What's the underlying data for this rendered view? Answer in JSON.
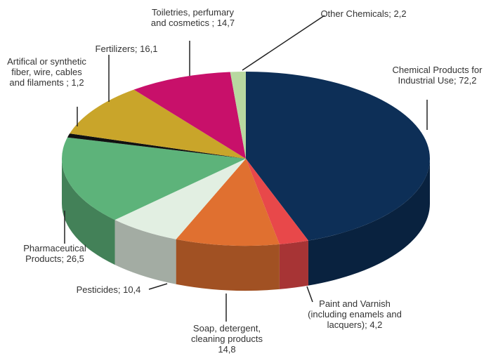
{
  "chart_data": {
    "type": "pie3d",
    "categories": [
      "Chemical Products for Industrial Use;",
      "Paint and Varnish (including enamels and lacquers);",
      "Soap, detergent, cleaning products",
      "Pesticides;",
      "Pharmaceutical Products;",
      "Artifical or synthetic fiber, wire, cables and filaments ;",
      "Fertilizers;",
      "Toiletries, perfumary and cosmetics ;",
      "Other Chemicals;"
    ],
    "values": [
      72.2,
      4.2,
      14.8,
      10.4,
      26.5,
      1.2,
      16.1,
      14.7,
      2.2
    ],
    "value_labels": [
      "72,2",
      "4,2",
      "14,8",
      "10,4",
      "26,5",
      "1,2",
      "16,1",
      "14,7",
      "2,2"
    ],
    "colors": [
      "#0d2f57",
      "#e8484a",
      "#e07030",
      "#e2efe2",
      "#5db37a",
      "#111111",
      "#c9a52a",
      "#c8106a",
      "#b8d8a0"
    ]
  }
}
